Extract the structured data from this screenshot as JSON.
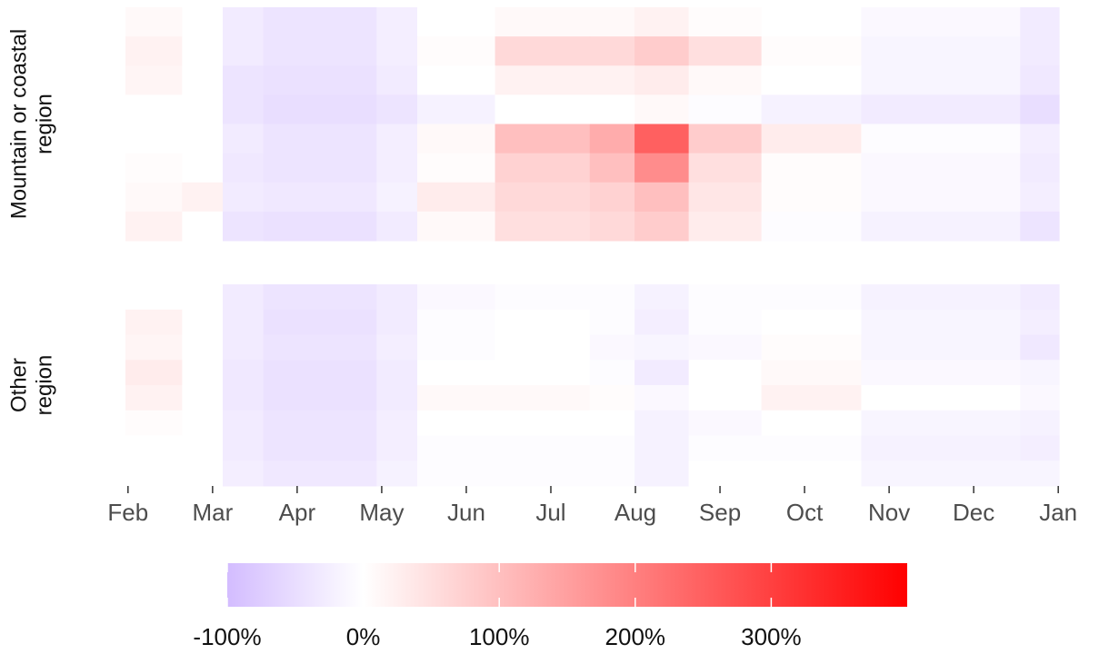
{
  "chart_data": {
    "type": "heatmap",
    "xlim": [
      -0.6,
      11.6
    ],
    "xticks": [
      {
        "value": 0,
        "label": "Feb"
      },
      {
        "value": 1,
        "label": "Mar"
      },
      {
        "value": 2,
        "label": "Apr"
      },
      {
        "value": 3,
        "label": "May"
      },
      {
        "value": 4,
        "label": "Jun"
      },
      {
        "value": 5,
        "label": "Jul"
      },
      {
        "value": 6,
        "label": "Aug"
      },
      {
        "value": 7,
        "label": "Sep"
      },
      {
        "value": 8,
        "label": "Oct"
      },
      {
        "value": 9,
        "label": "Nov"
      },
      {
        "value": 10,
        "label": "Dec"
      },
      {
        "value": 11,
        "label": "Jan"
      }
    ],
    "x_edges": [
      -0.03,
      0.64,
      1.12,
      1.6,
      2.94,
      3.42,
      4.34,
      5.46,
      5.99,
      6.63,
      7.49,
      8.67,
      10.55,
      11.01
    ],
    "facets": [
      {
        "label": [
          "Mountain or coastal",
          "region"
        ],
        "rows": [
          [
            10,
            0,
            -30,
            -40,
            -25,
            0,
            10,
            10,
            20,
            5,
            0,
            -10,
            -30
          ],
          [
            20,
            0,
            -30,
            -40,
            -25,
            5,
            60,
            60,
            80,
            50,
            5,
            -15,
            -30
          ],
          [
            15,
            0,
            -40,
            -45,
            -30,
            0,
            20,
            20,
            30,
            10,
            0,
            -15,
            -35
          ],
          [
            0,
            0,
            -40,
            -50,
            -40,
            -20,
            0,
            0,
            10,
            -5,
            -20,
            -30,
            -50
          ],
          [
            0,
            0,
            -30,
            -40,
            -25,
            10,
            100,
            130,
            250,
            80,
            30,
            -5,
            -25
          ],
          [
            5,
            0,
            -35,
            -40,
            -25,
            5,
            70,
            100,
            180,
            50,
            5,
            -10,
            -30
          ],
          [
            10,
            20,
            -30,
            -35,
            -20,
            30,
            60,
            70,
            100,
            40,
            5,
            -10,
            -25
          ],
          [
            20,
            0,
            -40,
            -45,
            -30,
            10,
            50,
            60,
            80,
            30,
            -5,
            -20,
            -40
          ]
        ]
      },
      {
        "label": [
          "Other",
          "region"
        ],
        "rows": [
          [
            0,
            0,
            -30,
            -40,
            -30,
            -10,
            -5,
            -5,
            -20,
            -5,
            -5,
            -20,
            -30
          ],
          [
            20,
            0,
            -30,
            -45,
            -30,
            -5,
            0,
            -5,
            -25,
            -5,
            0,
            -15,
            -25
          ],
          [
            15,
            0,
            -30,
            -40,
            -25,
            -5,
            0,
            -10,
            -15,
            -10,
            5,
            -15,
            -35
          ],
          [
            30,
            0,
            -35,
            -45,
            -30,
            0,
            0,
            -5,
            -30,
            0,
            10,
            -10,
            -15
          ],
          [
            20,
            0,
            -35,
            -45,
            -30,
            10,
            10,
            5,
            -10,
            0,
            20,
            0,
            -10
          ],
          [
            5,
            0,
            -30,
            -40,
            -25,
            0,
            0,
            0,
            -20,
            -10,
            0,
            -15,
            -20
          ],
          [
            0,
            0,
            -30,
            -40,
            -25,
            -5,
            -5,
            -5,
            -20,
            -5,
            -5,
            -20,
            -25
          ],
          [
            0,
            0,
            -25,
            -35,
            -20,
            -5,
            -5,
            -5,
            -20,
            0,
            0,
            -15,
            -15
          ]
        ]
      }
    ],
    "colorbar": {
      "lim": [
        -100,
        400
      ],
      "ticks": [
        {
          "value": -100,
          "label": "-100%"
        },
        {
          "value": 0,
          "label": "0%"
        },
        {
          "value": 100,
          "label": "100%"
        },
        {
          "value": 200,
          "label": "200%"
        },
        {
          "value": 300,
          "label": "300%"
        }
      ],
      "colors": {
        "low": "#d3bcff",
        "mid": "#ffffff",
        "high": "#ff0000"
      }
    }
  }
}
